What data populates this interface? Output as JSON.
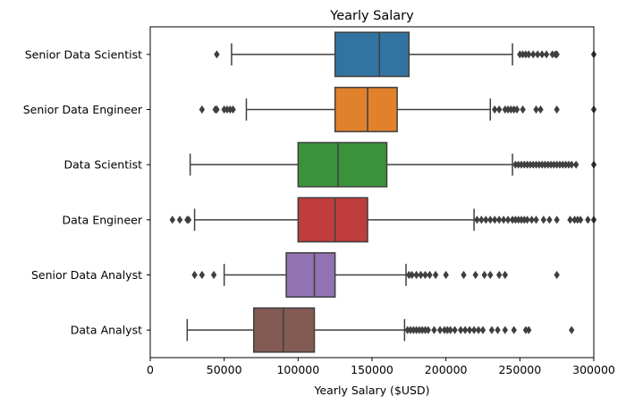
{
  "chart_data": {
    "type": "boxplot",
    "orientation": "horizontal",
    "title": "Yearly Salary",
    "xlabel": "Yearly Salary ($USD)",
    "ylabel": "",
    "xlim": [
      0,
      300000
    ],
    "xticks": [
      0,
      50000,
      100000,
      150000,
      200000,
      250000,
      300000
    ],
    "grid": false,
    "legend": "none",
    "box_line_color": "#3f3f3f",
    "categories": [
      "Senior Data Scientist",
      "Senior Data Engineer",
      "Data Scientist",
      "Data Engineer",
      "Senior Data Analyst",
      "Data Analyst"
    ],
    "series": [
      {
        "category": "Senior Data Scientist",
        "color": "#3274a1",
        "whisker_low": 55000,
        "q1": 125000,
        "median": 155000,
        "q3": 175000,
        "whisker_high": 245000,
        "outliers": [
          45000,
          250000,
          252000,
          254000,
          256000,
          259000,
          262000,
          265000,
          268000,
          272000,
          274000,
          275000,
          300000
        ]
      },
      {
        "category": "Senior Data Engineer",
        "color": "#e1812c",
        "whisker_low": 65000,
        "q1": 125000,
        "median": 147000,
        "q3": 167000,
        "whisker_high": 230000,
        "outliers": [
          35000,
          44000,
          45000,
          50000,
          52000,
          54000,
          56000,
          233000,
          236000,
          240000,
          242000,
          244000,
          246000,
          248000,
          252000,
          261000,
          264000,
          275000,
          300000
        ]
      },
      {
        "category": "Data Scientist",
        "color": "#3a923a",
        "whisker_low": 27000,
        "q1": 100000,
        "median": 127000,
        "q3": 160000,
        "whisker_high": 245000,
        "outliers": [
          247000,
          249000,
          251000,
          253000,
          255000,
          257000,
          259000,
          261000,
          263000,
          265000,
          267000,
          269000,
          271000,
          273000,
          275000,
          277000,
          279000,
          281000,
          283000,
          285000,
          288000,
          300000
        ]
      },
      {
        "category": "Data Engineer",
        "color": "#c03d3e",
        "whisker_low": 30000,
        "q1": 100000,
        "median": 125000,
        "q3": 147000,
        "whisker_high": 219000,
        "outliers": [
          15000,
          20000,
          25000,
          26000,
          221000,
          224000,
          227000,
          230000,
          233000,
          236000,
          239000,
          242000,
          245000,
          247000,
          249000,
          251000,
          253000,
          255000,
          258000,
          261000,
          266000,
          270000,
          275000,
          284000,
          287000,
          289000,
          291000,
          296000,
          300000
        ]
      },
      {
        "category": "Senior Data Analyst",
        "color": "#9372b2",
        "whisker_low": 50000,
        "q1": 92000,
        "median": 111000,
        "q3": 125000,
        "whisker_high": 173000,
        "outliers": [
          30000,
          35000,
          43000,
          175000,
          177000,
          180000,
          183000,
          186000,
          189000,
          193000,
          200000,
          212000,
          220000,
          226000,
          230000,
          236000,
          240000,
          275000
        ]
      },
      {
        "category": "Data Analyst",
        "color": "#845b53",
        "whisker_low": 25000,
        "q1": 70000,
        "median": 90000,
        "q3": 111000,
        "whisker_high": 172000,
        "outliers": [
          174000,
          176000,
          178000,
          180000,
          182000,
          184000,
          186000,
          188000,
          192000,
          196000,
          199000,
          201000,
          203000,
          206000,
          210000,
          213000,
          216000,
          219000,
          222000,
          225000,
          231000,
          235000,
          240000,
          246000,
          254000,
          256000,
          285000
        ]
      }
    ]
  }
}
